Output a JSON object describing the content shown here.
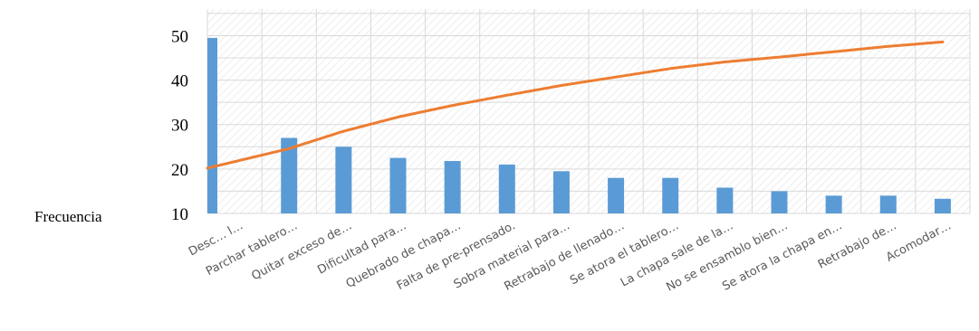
{
  "chart_data": {
    "type": "bar",
    "ylabel": "Frecuencia",
    "ylim": [
      10,
      56
    ],
    "yticks": [
      "10",
      "20",
      "30",
      "40",
      "50"
    ],
    "grid": true,
    "categories": [
      "Desc… l…",
      "Parchar tablero…",
      "Quitar exceso de…",
      "Dificultad para…",
      "Quebrado de chapa…",
      "Falta de pre-prensado.",
      "Sobra material para…",
      "Retrabajo de llenado…",
      "Se atora el tablero…",
      "La chapa sale de la…",
      "No se ensamblo bien…",
      "Se atora la chapa en…",
      "Retrabajo de…",
      "Acomodar…"
    ],
    "series": [
      {
        "type": "bar",
        "color": "#5b9bd5",
        "values": [
          49.5,
          27,
          25,
          22.5,
          21.8,
          21,
          19.5,
          18,
          18,
          15.8,
          15,
          14,
          14,
          13.3
        ]
      },
      {
        "type": "line",
        "color": "#ed7d31",
        "values": [
          20.2,
          24.6,
          28.5,
          31.7,
          34.3,
          36.6,
          38.8,
          40.7,
          42.6,
          44.1,
          45.2,
          46.4,
          47.6,
          48.6
        ]
      }
    ]
  }
}
